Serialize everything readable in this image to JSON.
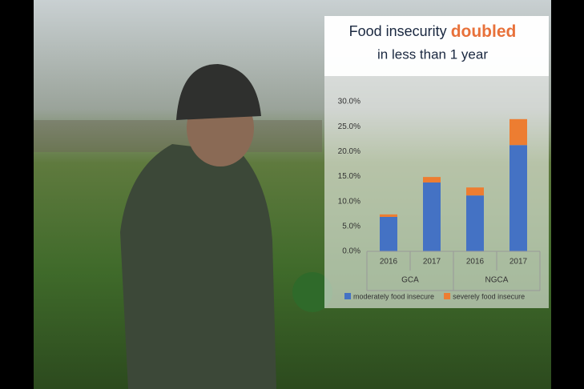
{
  "chart_data": {
    "type": "stacked_bar",
    "title": "Food insecurity",
    "title_emphasis": "doubled",
    "subtitle": "in less than 1 year",
    "categories": [
      "2016",
      "2017",
      "2016",
      "2017"
    ],
    "groups": [
      "GCA",
      "NGCA"
    ],
    "series": [
      {
        "name": "moderately food insecure",
        "color": "#4472c4",
        "values": [
          6.9,
          13.8,
          11.2,
          21.3
        ]
      },
      {
        "name": "severely food insecure",
        "color": "#ed7d31",
        "values": [
          0.5,
          1.1,
          1.6,
          5.2
        ]
      }
    ],
    "ylim": [
      0,
      30
    ],
    "yticks": [
      {
        "value": 0,
        "label": "0.0%"
      },
      {
        "value": 5,
        "label": "5.0%"
      },
      {
        "value": 10,
        "label": "10.0%"
      },
      {
        "value": 15,
        "label": "15.0%"
      },
      {
        "value": 20,
        "label": "20.0%"
      },
      {
        "value": 25,
        "label": "25.0%"
      },
      {
        "value": 30,
        "label": "30.0%"
      }
    ],
    "grid": false,
    "legend": "bottom"
  }
}
